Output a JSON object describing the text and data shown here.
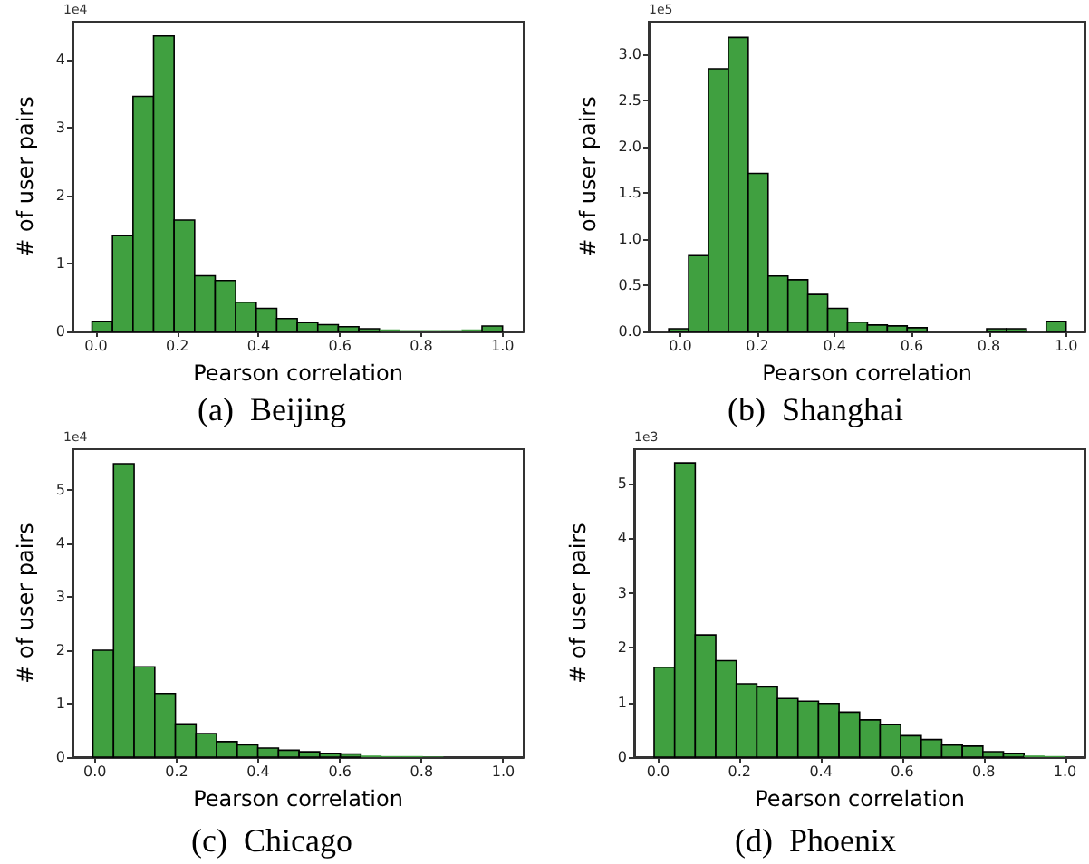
{
  "chart_data": [
    {
      "type": "histogram",
      "title": "(a)  Beijing",
      "xlabel": "Pearson correlation",
      "ylabel": "# of user pairs",
      "annotations": [
        "1e4"
      ],
      "bins": [
        -0.01,
        0.0405,
        0.091,
        0.1415,
        0.192,
        0.2425,
        0.293,
        0.3435,
        0.394,
        0.4445,
        0.495,
        0.5455,
        0.596,
        0.6465,
        0.697,
        0.7475,
        0.798,
        0.8485,
        0.899,
        0.9495,
        1.0
      ],
      "values": [
        0.15,
        1.41,
        3.46,
        4.35,
        1.64,
        0.82,
        0.75,
        0.43,
        0.34,
        0.19,
        0.13,
        0.1,
        0.07,
        0.04,
        0.03,
        0.02,
        0.02,
        0.02,
        0.03,
        0.08
      ],
      "color": "#40a040",
      "xlim": [
        -0.058,
        1.052
      ],
      "xticks": [
        {
          "value": 0,
          "label": "0.0"
        },
        {
          "value": 0.2,
          "label": "0.2"
        },
        {
          "value": 0.4,
          "label": "0.4"
        },
        {
          "value": 0.6,
          "label": "0.6"
        },
        {
          "value": 0.8,
          "label": "0.8"
        },
        {
          "value": 1,
          "label": "1.0"
        }
      ],
      "ylim": [
        0,
        4.56
      ],
      "yticks": [
        0,
        1,
        2,
        3,
        4
      ]
    },
    {
      "type": "histogram",
      "title": "(b)  Shanghai",
      "xlabel": "Pearson correlation",
      "ylabel": "# of user pairs",
      "annotations": [
        "1e5"
      ],
      "bins": [
        -0.03,
        0.0215,
        0.073,
        0.1245,
        0.176,
        0.2275,
        0.279,
        0.3305,
        0.382,
        0.4335,
        0.485,
        0.5365,
        0.588,
        0.6395,
        0.691,
        0.7425,
        0.794,
        0.8455,
        0.897,
        0.9485,
        1.0
      ],
      "values": [
        0.03,
        0.82,
        2.84,
        3.18,
        1.71,
        0.6,
        0.56,
        0.4,
        0.25,
        0.1,
        0.07,
        0.06,
        0.04,
        0.01,
        0.01,
        0,
        0.03,
        0.03,
        0.01,
        0.11
      ],
      "color": "#40a040",
      "xlim": [
        -0.082,
        1.05
      ],
      "xticks": [
        {
          "value": 0,
          "label": "0.0"
        },
        {
          "value": 0.2,
          "label": "0.2"
        },
        {
          "value": 0.4,
          "label": "0.4"
        },
        {
          "value": 0.6,
          "label": "0.6"
        },
        {
          "value": 0.8,
          "label": "0.8"
        },
        {
          "value": 1,
          "label": "1.0"
        }
      ],
      "ylim": [
        0,
        3.35
      ],
      "yticks": [
        {
          "value": 0,
          "label": "0.0"
        },
        {
          "value": 0.5,
          "label": "0.5"
        },
        {
          "value": 1,
          "label": "1.0"
        },
        {
          "value": 1.5,
          "label": "1.5"
        },
        {
          "value": 2,
          "label": "2.0"
        },
        {
          "value": 2.5,
          "label": "2.5"
        },
        {
          "value": 3,
          "label": "3.0"
        }
      ]
    },
    {
      "type": "histogram",
      "title": "(c)  Chicago",
      "xlabel": "Pearson correlation",
      "ylabel": "# of user pairs",
      "annotations": [
        "1e4"
      ],
      "bins": [
        -0.005,
        0.0455,
        0.096,
        0.1465,
        0.197,
        0.2475,
        0.298,
        0.3485,
        0.399,
        0.4495,
        0.5,
        0.5505,
        0.601,
        0.6515,
        0.702,
        0.7525,
        0.803,
        0.8535,
        0.904,
        0.9545,
        1.005
      ],
      "values": [
        2.0,
        5.49,
        1.69,
        1.19,
        0.62,
        0.44,
        0.29,
        0.23,
        0.17,
        0.13,
        0.1,
        0.07,
        0.06,
        0.03,
        0.02,
        0.02,
        0.01,
        0,
        0,
        0
      ],
      "color": "#40a040",
      "xlim": [
        -0.055,
        1.05
      ],
      "xticks": [
        {
          "value": 0,
          "label": "0.0"
        },
        {
          "value": 0.2,
          "label": "0.2"
        },
        {
          "value": 0.4,
          "label": "0.4"
        },
        {
          "value": 0.6,
          "label": "0.6"
        },
        {
          "value": 0.8,
          "label": "0.8"
        },
        {
          "value": 1,
          "label": "1.0"
        }
      ],
      "ylim": [
        0,
        5.76
      ],
      "yticks": [
        0,
        1,
        2,
        3,
        4,
        5
      ]
    },
    {
      "type": "histogram",
      "title": "(d)  Phoenix",
      "xlabel": "Pearson correlation",
      "ylabel": "# of user pairs",
      "annotations": [
        "1e3"
      ],
      "bins": [
        -0.01,
        0.0405,
        0.091,
        0.1415,
        0.192,
        0.2425,
        0.293,
        0.3435,
        0.394,
        0.4445,
        0.495,
        0.5455,
        0.596,
        0.6465,
        0.697,
        0.7475,
        0.798,
        0.8485,
        0.899,
        0.9495,
        1.0
      ],
      "values": [
        1.64,
        5.37,
        2.23,
        1.76,
        1.34,
        1.28,
        1.07,
        1.02,
        0.98,
        0.82,
        0.68,
        0.6,
        0.39,
        0.32,
        0.22,
        0.2,
        0.1,
        0.07,
        0.03,
        0.02
      ],
      "color": "#40a040",
      "xlim": [
        -0.059,
        1.05
      ],
      "xticks": [
        {
          "value": 0,
          "label": "0.0"
        },
        {
          "value": 0.2,
          "label": "0.2"
        },
        {
          "value": 0.4,
          "label": "0.4"
        },
        {
          "value": 0.6,
          "label": "0.6"
        },
        {
          "value": 0.8,
          "label": "0.8"
        },
        {
          "value": 1,
          "label": "1.0"
        }
      ],
      "ylim": [
        0,
        5.62
      ],
      "yticks": [
        0,
        1,
        2,
        3,
        4,
        5
      ]
    }
  ]
}
